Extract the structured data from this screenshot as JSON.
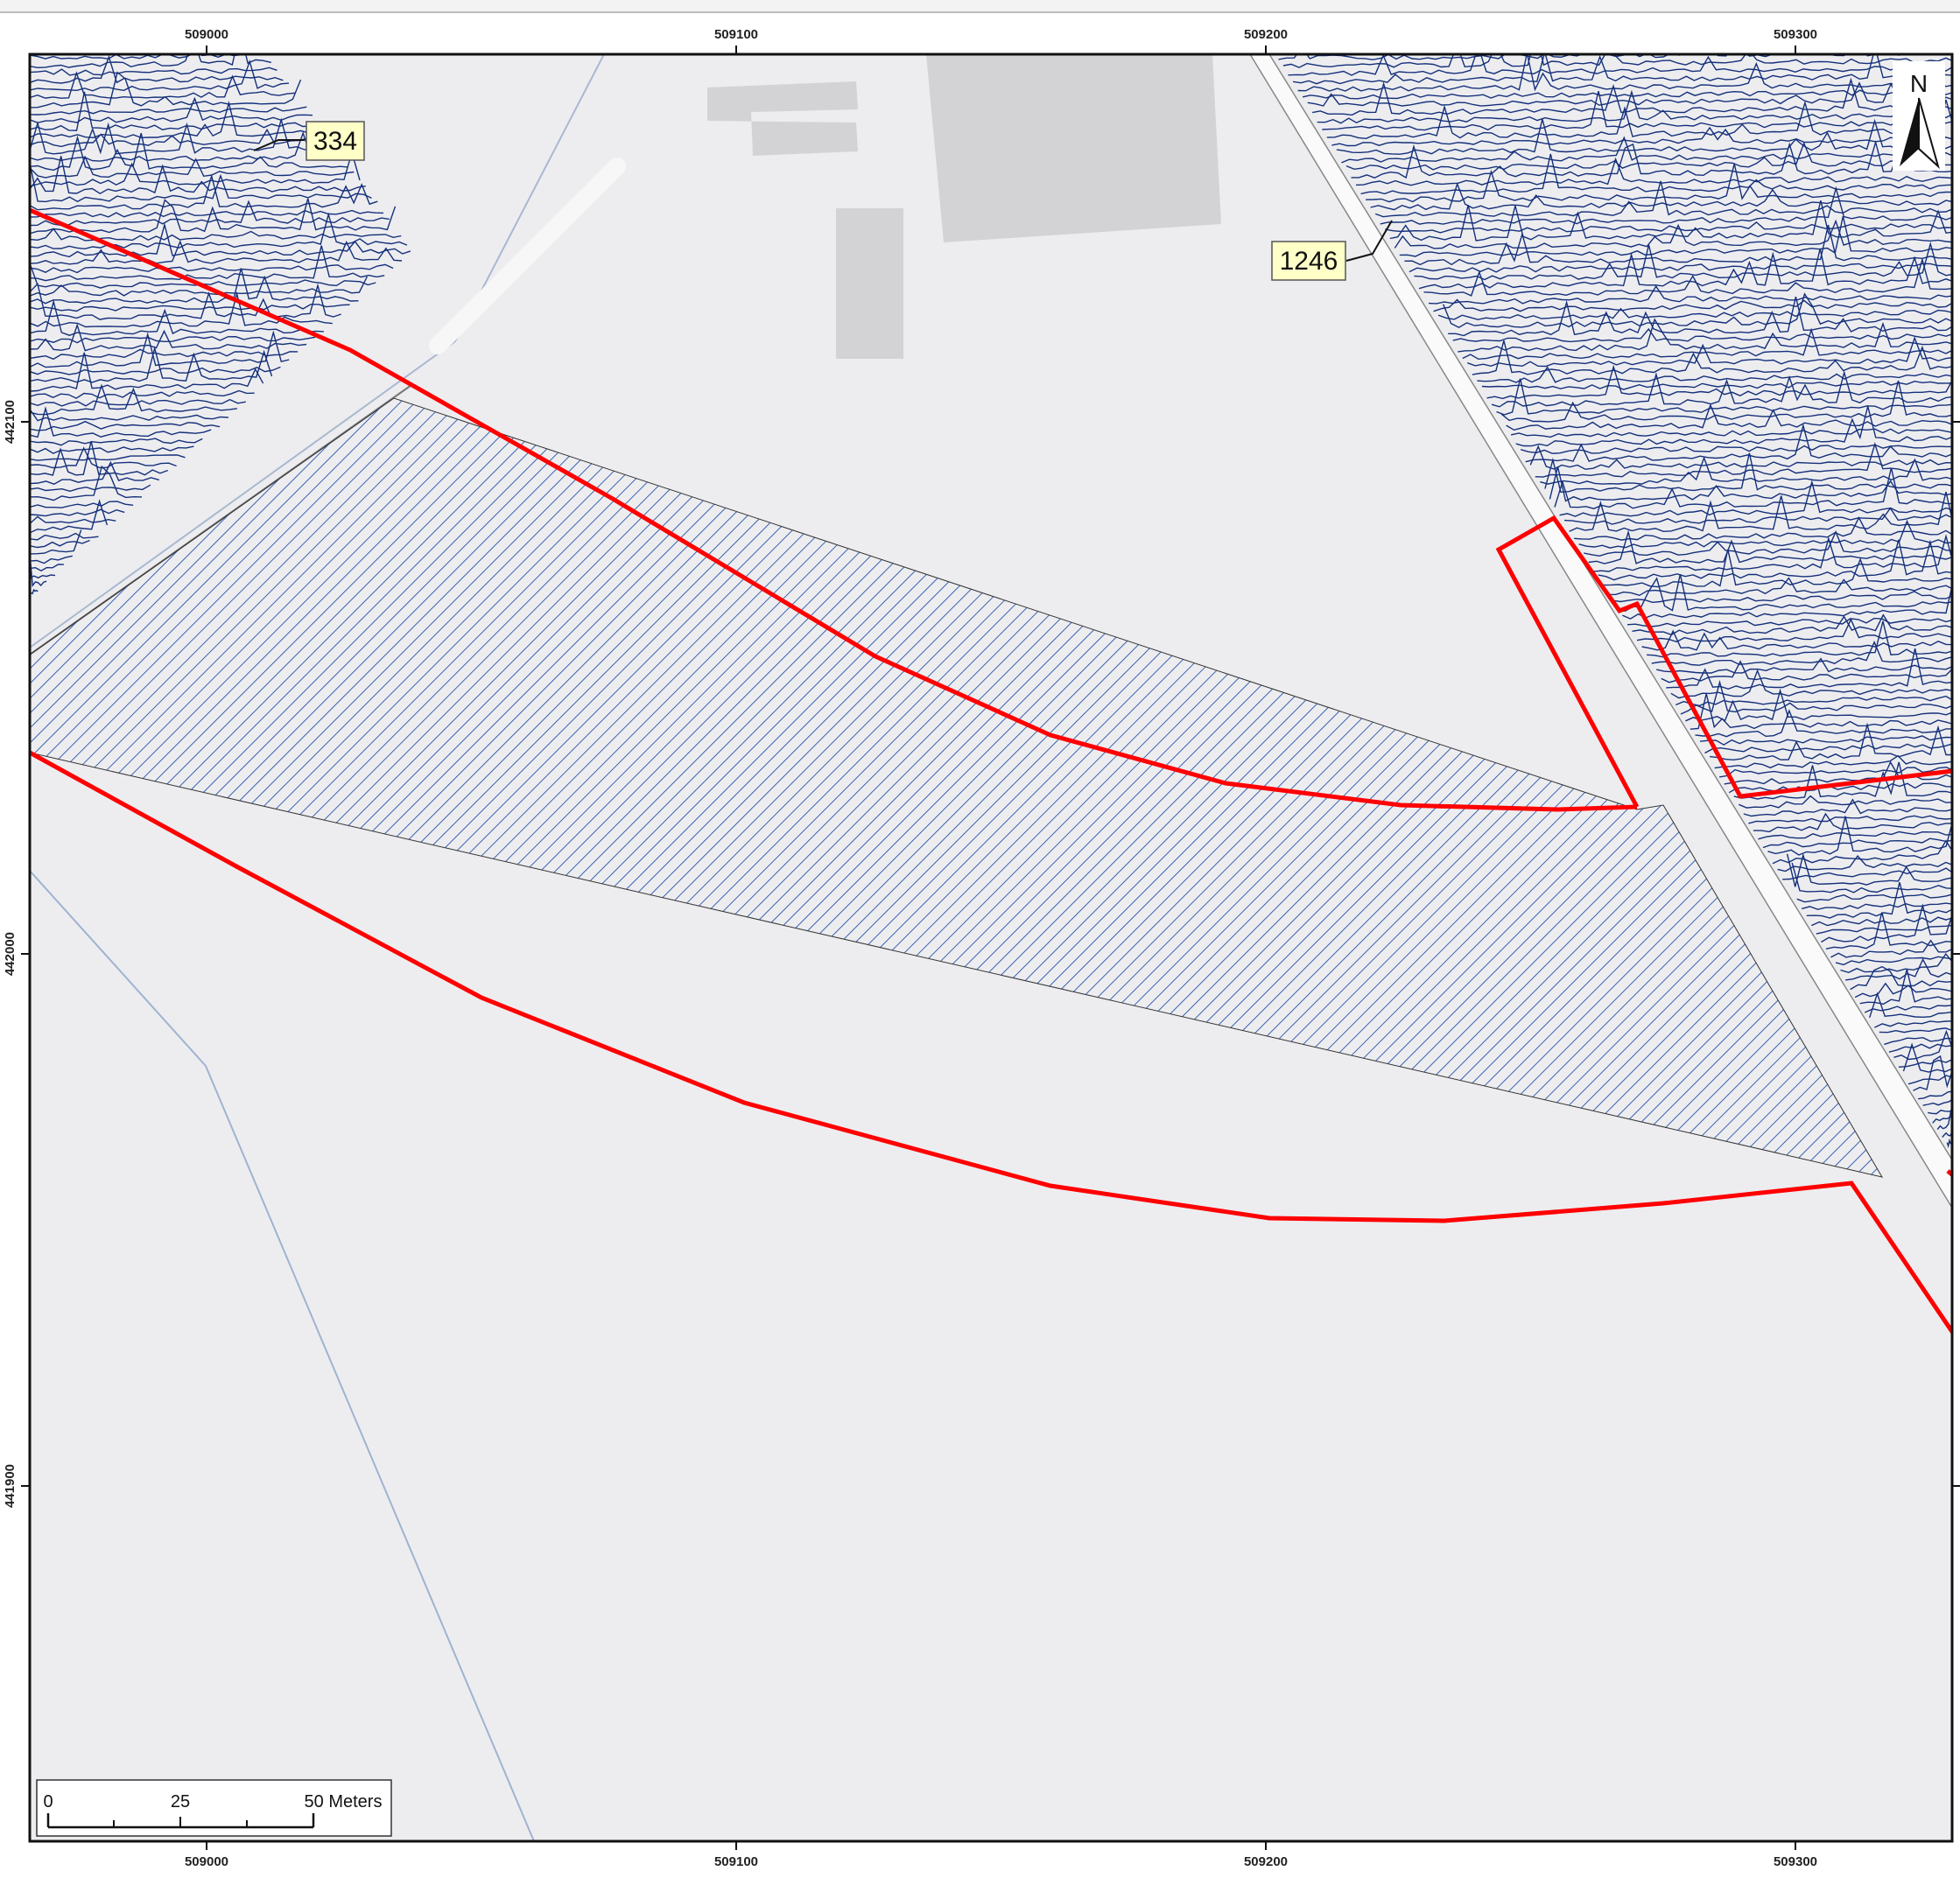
{
  "map": {
    "grid": {
      "x_labels": [
        "509000",
        "509100",
        "509200",
        "509300"
      ],
      "y_labels": [
        "442100",
        "442000",
        "441900"
      ]
    },
    "callouts": [
      {
        "id": "callout-334",
        "text": "334"
      },
      {
        "id": "callout-1246",
        "text": "1246"
      }
    ],
    "north_arrow": {
      "label": "N"
    },
    "scale_bar": {
      "labels": [
        "0",
        "25",
        "50 Meters"
      ]
    },
    "colors": {
      "background": "#ededf0",
      "boundary": "#ff0000",
      "hatch": "#3a63b0",
      "traces": "#15307a",
      "buildings": "#d3d3d5",
      "label_fill": "#ffffc8"
    }
  }
}
